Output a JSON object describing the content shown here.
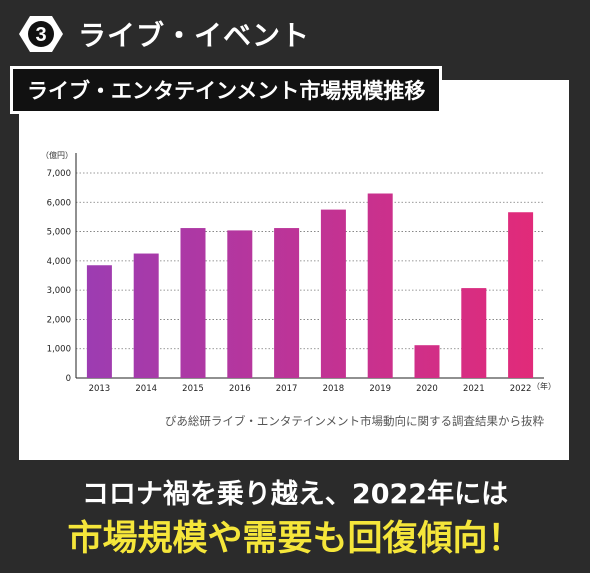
{
  "section": {
    "number": "3",
    "title": "ライブ・イベント"
  },
  "chart_title": "ライブ・エンタテインメント市場規模推移",
  "source_note": "ぴあ総研ライブ・エンタテインメント市場動向に関する調査結果から抜粋",
  "caption": {
    "line1": "コロナ禍を乗り越え、2022年には",
    "line2": "市場規模や需要も回復傾向！"
  },
  "colors": {
    "bar_start": "#9b3db3",
    "bar_end": "#e32a78",
    "caption_highlight": "#f5e63a",
    "background": "#2b2b2b"
  },
  "chart_data": {
    "type": "bar",
    "title": "ライブ・エンタテインメント市場規模推移",
    "ylabel": "（億円）",
    "xlabel": "（年）",
    "categories": [
      "2013",
      "2014",
      "2015",
      "2016",
      "2017",
      "2018",
      "2019",
      "2020",
      "2021",
      "2022"
    ],
    "values": [
      3850,
      4250,
      5120,
      5040,
      5120,
      5750,
      6300,
      1120,
      3070,
      5660
    ],
    "ylim": [
      0,
      7000
    ],
    "yticks": [
      "0",
      "1,000",
      "2,000",
      "3,000",
      "4,000",
      "5,000",
      "6,000",
      "7,000"
    ],
    "grid": true
  }
}
